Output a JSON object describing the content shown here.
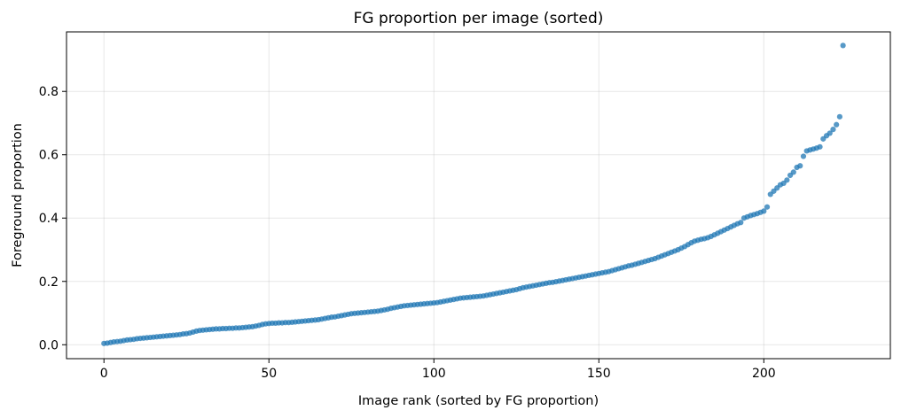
{
  "chart_data": {
    "type": "scatter",
    "title": "FG proportion per image (sorted)",
    "xlabel": "Image rank (sorted by FG proportion)",
    "ylabel": "Foreground proportion",
    "xlim": [
      -11.35,
      238.35
    ],
    "ylim": [
      -0.044,
      0.988
    ],
    "xticks": [
      0,
      50,
      100,
      150,
      200
    ],
    "yticks": [
      0.0,
      0.2,
      0.4,
      0.6,
      0.8
    ],
    "ytick_labels": [
      "0.0",
      "0.2",
      "0.4",
      "0.6",
      "0.8"
    ],
    "grid": true,
    "marker_color": "#1f77b4",
    "series": [
      {
        "values": [
          0.004,
          0.005,
          0.007,
          0.009,
          0.01,
          0.011,
          0.013,
          0.015,
          0.016,
          0.017,
          0.019,
          0.02,
          0.021,
          0.022,
          0.023,
          0.024,
          0.025,
          0.026,
          0.027,
          0.028,
          0.029,
          0.03,
          0.031,
          0.032,
          0.034,
          0.035,
          0.037,
          0.04,
          0.043,
          0.045,
          0.046,
          0.047,
          0.048,
          0.049,
          0.05,
          0.05,
          0.051,
          0.051,
          0.052,
          0.052,
          0.053,
          0.053,
          0.054,
          0.055,
          0.056,
          0.057,
          0.059,
          0.061,
          0.064,
          0.066,
          0.067,
          0.068,
          0.068,
          0.069,
          0.069,
          0.07,
          0.07,
          0.071,
          0.072,
          0.073,
          0.074,
          0.075,
          0.076,
          0.077,
          0.078,
          0.079,
          0.081,
          0.083,
          0.085,
          0.087,
          0.088,
          0.09,
          0.092,
          0.094,
          0.096,
          0.098,
          0.099,
          0.1,
          0.101,
          0.102,
          0.103,
          0.104,
          0.105,
          0.106,
          0.108,
          0.11,
          0.112,
          0.115,
          0.117,
          0.119,
          0.121,
          0.123,
          0.124,
          0.125,
          0.126,
          0.127,
          0.128,
          0.129,
          0.13,
          0.131,
          0.132,
          0.133,
          0.135,
          0.137,
          0.139,
          0.141,
          0.143,
          0.145,
          0.147,
          0.148,
          0.149,
          0.15,
          0.151,
          0.152,
          0.153,
          0.154,
          0.156,
          0.158,
          0.16,
          0.162,
          0.164,
          0.166,
          0.168,
          0.17,
          0.172,
          0.174,
          0.177,
          0.18,
          0.182,
          0.184,
          0.186,
          0.188,
          0.19,
          0.192,
          0.194,
          0.196,
          0.197,
          0.199,
          0.201,
          0.203,
          0.205,
          0.207,
          0.209,
          0.211,
          0.213,
          0.215,
          0.217,
          0.219,
          0.221,
          0.223,
          0.225,
          0.227,
          0.229,
          0.231,
          0.234,
          0.237,
          0.24,
          0.243,
          0.246,
          0.249,
          0.251,
          0.254,
          0.257,
          0.26,
          0.263,
          0.266,
          0.269,
          0.272,
          0.276,
          0.28,
          0.284,
          0.288,
          0.292,
          0.296,
          0.3,
          0.305,
          0.31,
          0.316,
          0.322,
          0.327,
          0.33,
          0.333,
          0.335,
          0.338,
          0.342,
          0.347,
          0.352,
          0.357,
          0.362,
          0.367,
          0.372,
          0.377,
          0.382,
          0.386,
          0.4,
          0.404,
          0.408,
          0.411,
          0.414,
          0.418,
          0.422,
          0.435,
          0.475,
          0.485,
          0.495,
          0.505,
          0.51,
          0.52,
          0.535,
          0.545,
          0.56,
          0.565,
          0.595,
          0.612,
          0.615,
          0.618,
          0.621,
          0.625,
          0.65,
          0.66,
          0.668,
          0.68,
          0.695,
          0.72,
          0.945
        ]
      }
    ]
  }
}
